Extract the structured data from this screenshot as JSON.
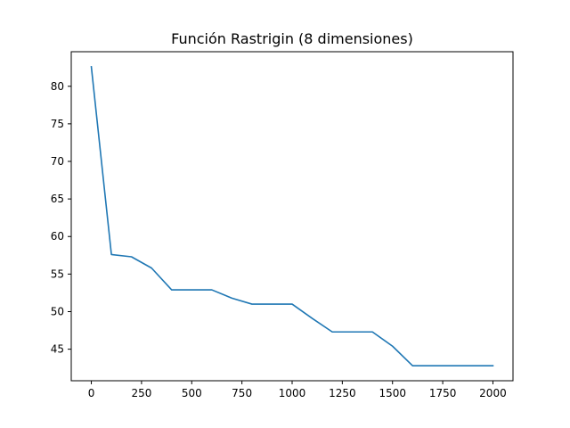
{
  "chart_data": {
    "type": "line",
    "title": "Función Rastrigin (8 dimensiones)",
    "xlabel": "",
    "ylabel": "",
    "xlim": [
      -100,
      2100
    ],
    "ylim": [
      40.8,
      84.6
    ],
    "xticks": [
      0,
      250,
      500,
      750,
      1000,
      1250,
      1500,
      1750,
      2000
    ],
    "xtick_labels": [
      "0",
      "250",
      "500",
      "750",
      "1000",
      "1250",
      "1500",
      "1750",
      "2000"
    ],
    "yticks": [
      45,
      50,
      55,
      60,
      65,
      70,
      75,
      80
    ],
    "ytick_labels": [
      "45",
      "50",
      "55",
      "60",
      "65",
      "70",
      "75",
      "80"
    ],
    "grid": false,
    "series": [
      {
        "color": "#1f77b4",
        "x": [
          0,
          100,
          200,
          300,
          400,
          500,
          600,
          700,
          800,
          900,
          1000,
          1100,
          1200,
          1300,
          1400,
          1500,
          1600,
          1700,
          1800,
          1900,
          2000
        ],
        "y": [
          82.6,
          57.6,
          57.3,
          55.8,
          52.9,
          52.9,
          52.9,
          51.8,
          51.0,
          51.0,
          51.0,
          49.1,
          47.3,
          47.3,
          47.3,
          45.4,
          42.8,
          42.8,
          42.8,
          42.8,
          42.8
        ]
      }
    ]
  }
}
